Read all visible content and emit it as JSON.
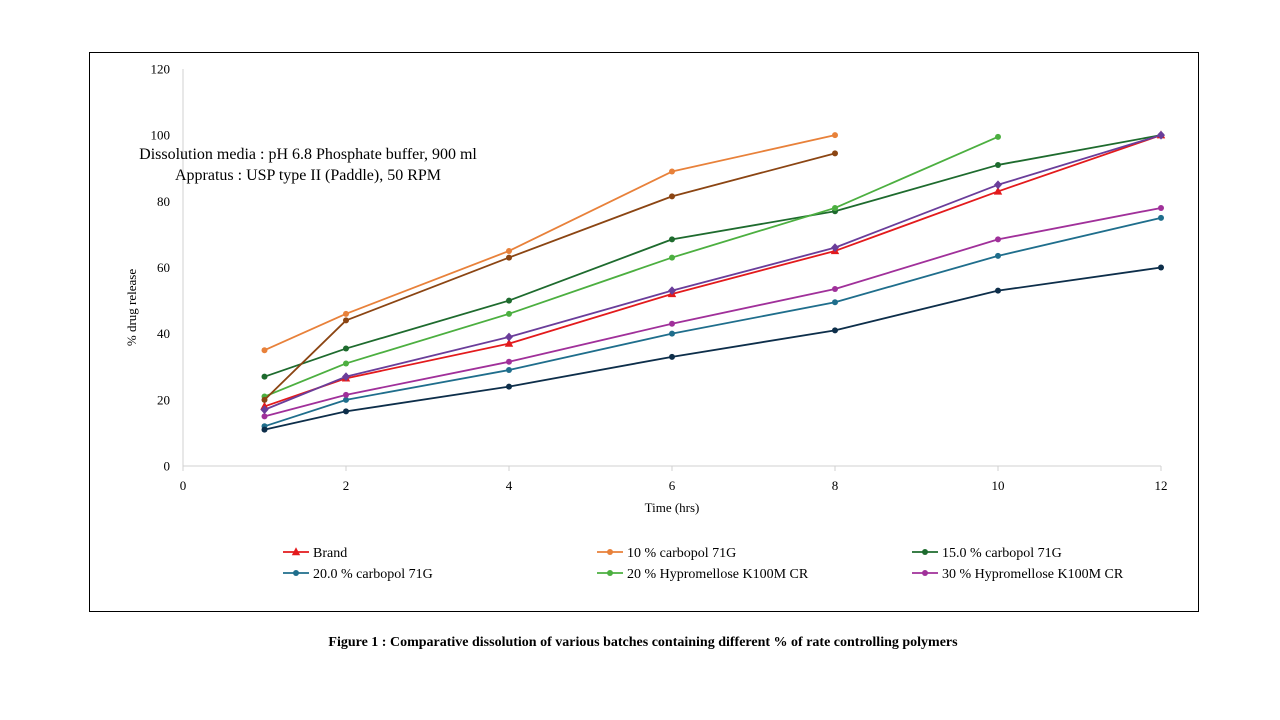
{
  "chart_data": {
    "type": "line",
    "xlabel": "Time (hrs)",
    "ylabel": "% drug release",
    "xlim": [
      0,
      12
    ],
    "ylim": [
      0,
      120
    ],
    "xticks": [
      0,
      2,
      4,
      6,
      8,
      10,
      12
    ],
    "yticks": [
      0,
      20,
      40,
      60,
      80,
      100,
      120
    ],
    "grid": false,
    "legend_position": "bottom",
    "annotations": [
      "Dissolution media : pH 6.8 Phosphate buffer, 900 ml",
      "Appratus : USP  type II (Paddle), 50 RPM"
    ],
    "series": [
      {
        "name": "Brand",
        "color": "#e31a1c",
        "marker": "triangle",
        "x": [
          1,
          2,
          4,
          6,
          8,
          10,
          12
        ],
        "y": [
          18,
          26.5,
          37,
          52,
          65,
          83,
          100
        ]
      },
      {
        "name": "10 % carbopol 71G",
        "color": "#e8813a",
        "marker": "circle",
        "x": [
          1,
          2,
          4,
          6,
          8
        ],
        "y": [
          35,
          46,
          65,
          89,
          100
        ]
      },
      {
        "name": "15.0 % carbopol 71G",
        "color": "#1e6b2e",
        "marker": "circle",
        "x": [
          1,
          2,
          4,
          6,
          8,
          10,
          12
        ],
        "y": [
          27,
          35.5,
          50,
          68.5,
          77,
          91,
          100
        ]
      },
      {
        "name": "20.0 % carbopol 71G",
        "color": "#1f6e8c",
        "marker": "circle",
        "x": [
          1,
          2,
          4,
          6,
          8,
          10,
          12
        ],
        "y": [
          12,
          20,
          29,
          40,
          49.5,
          63.5,
          75
        ]
      },
      {
        "name": "20 % Hypromellose K100M CR",
        "color": "#4caf40",
        "marker": "circle",
        "x": [
          1,
          2,
          4,
          6,
          8,
          10
        ],
        "y": [
          21,
          31,
          46,
          63,
          78,
          99.5
        ]
      },
      {
        "name": "30 % Hypromellose K100M CR",
        "color": "#a0309a",
        "marker": "circle",
        "x": [
          1,
          2,
          4,
          6,
          8,
          10,
          12
        ],
        "y": [
          15,
          21.5,
          31.5,
          43,
          53.5,
          68.5,
          78
        ]
      },
      {
        "name": "",
        "color": "#8b4513",
        "marker": "circle",
        "x": [
          1,
          2,
          4,
          6,
          8
        ],
        "y": [
          20,
          44,
          63,
          81.5,
          94.5
        ]
      },
      {
        "name": "",
        "color": "#6a3d9a",
        "marker": "diamond",
        "x": [
          1,
          2,
          4,
          6,
          8,
          10,
          12
        ],
        "y": [
          17,
          27,
          39,
          53,
          66,
          85,
          100
        ]
      },
      {
        "name": "",
        "color": "#0d2e4a",
        "marker": "circle",
        "x": [
          1,
          2,
          4,
          6,
          8,
          10,
          12
        ],
        "y": [
          11,
          16.5,
          24,
          33,
          41,
          53,
          60
        ]
      }
    ]
  },
  "caption": "Figure 1 : Comparative dissolution of various batches containing different % of rate controlling polymers"
}
